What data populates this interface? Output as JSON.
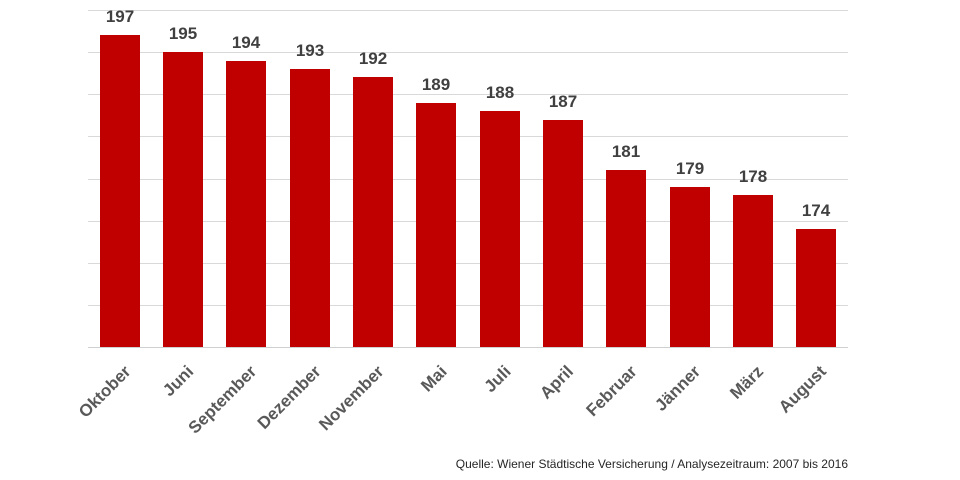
{
  "chart_data": {
    "type": "bar",
    "title": "",
    "xlabel": "",
    "ylabel": "",
    "categories": [
      "Oktober",
      "Juni",
      "September",
      "Dezember",
      "November",
      "Mai",
      "Juli",
      "April",
      "Februar",
      "Jänner",
      "März",
      "August"
    ],
    "values": [
      197,
      195,
      194,
      193,
      192,
      189,
      188,
      187,
      181,
      179,
      178,
      174
    ],
    "ylim": [
      160,
      200
    ],
    "y_axis_visible": false,
    "grid": true,
    "grid_step": 5,
    "data_labels": true,
    "bar_color": "#c00000",
    "legend": null,
    "annotations": [
      "Quelle: Wiener Städtische Versicherung / Analysezeitraum: 2007 bis 2016"
    ]
  },
  "source_note": "Quelle: Wiener Städtische Versicherung / Analysezeitraum: 2007 bis 2016"
}
